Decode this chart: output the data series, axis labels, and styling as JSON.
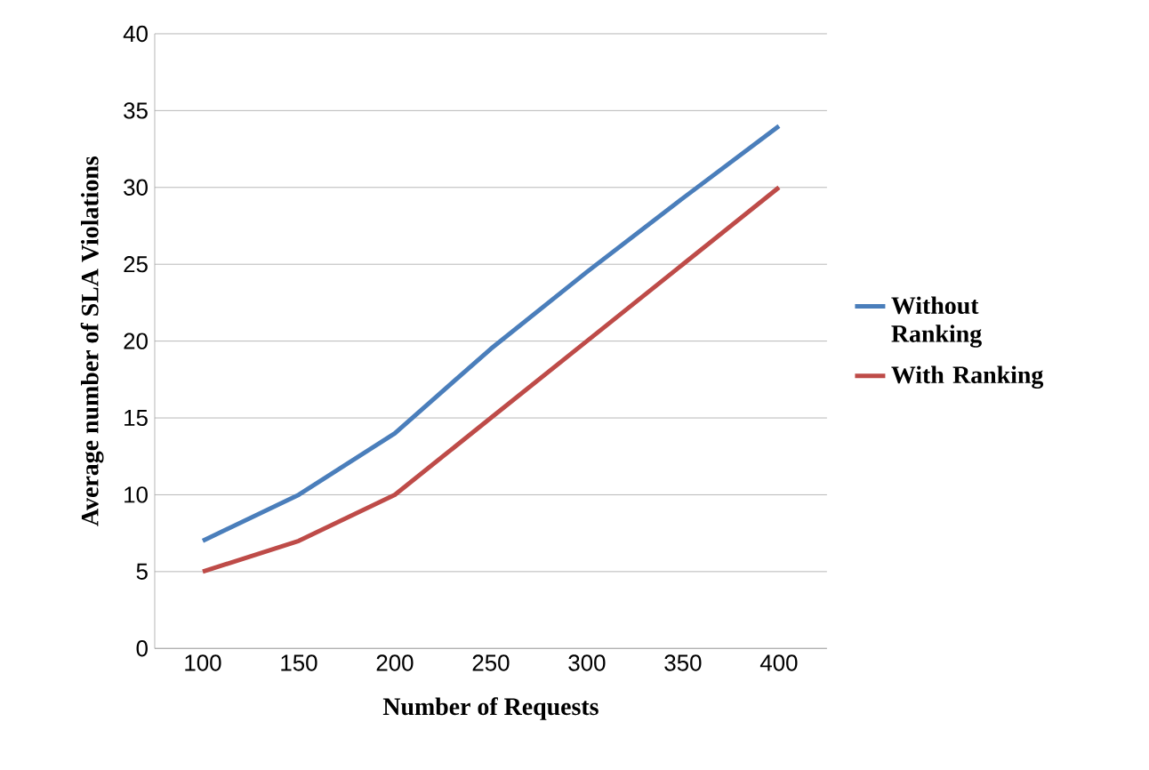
{
  "chart_data": {
    "type": "line",
    "xlabel": "Number of Requests",
    "ylabel": "Average number of  SLA Violations",
    "categories": [
      "100",
      "150",
      "200",
      "250",
      "300",
      "350",
      "400"
    ],
    "series": [
      {
        "name": "Without Ranking",
        "color": "#4a7ebb",
        "values": [
          7,
          10,
          14,
          19.5,
          24.5,
          29.3,
          34
        ]
      },
      {
        "name": "With Ranking",
        "color": "#be4b48",
        "values": [
          5,
          7,
          10,
          15,
          20,
          25,
          30
        ]
      }
    ],
    "ylim": [
      0,
      40
    ],
    "yticks": [
      0,
      5,
      10,
      15,
      20,
      25,
      30,
      35,
      40
    ],
    "grid": "y",
    "legend": "right",
    "marker": "none",
    "line_style": "solid"
  }
}
